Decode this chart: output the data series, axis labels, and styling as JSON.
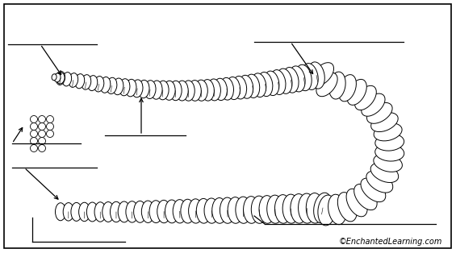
{
  "background_color": "#ffffff",
  "border_color": "#000000",
  "worm_color": "#ffffff",
  "worm_edge_color": "#000000",
  "watermark": "©EnchantedLearning.com",
  "watermark_fontsize": 7,
  "figsize": [
    5.65,
    3.14
  ],
  "dpi": 100
}
